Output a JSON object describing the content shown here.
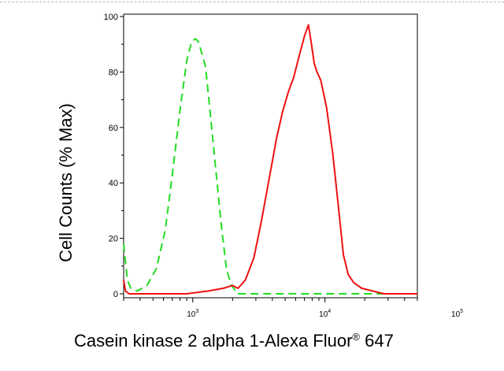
{
  "chart_data": {
    "type": "line",
    "xscale": "log",
    "ylabel": "Cell Counts (% Max)",
    "xlabel": {
      "text": "Casein kinase 2 alpha 1-Alexa Fluor",
      "superscript": "®",
      "suffix": " 647"
    },
    "ylim": [
      0,
      100
    ],
    "xlim": [
      300,
      50000
    ],
    "yticks": [
      "0",
      "20",
      "40",
      "60",
      "80",
      "100"
    ],
    "xticks": [
      {
        "value": 1000,
        "base": "10",
        "exp": "3"
      },
      {
        "value": 10000,
        "base": "10",
        "exp": "4"
      },
      {
        "value": 100000,
        "base": "10",
        "exp": "5"
      }
    ],
    "series": [
      {
        "style": "dashed",
        "color": "#22dd22",
        "x": [
          300,
          320,
          340,
          380,
          450,
          530,
          620,
          700,
          800,
          900,
          980,
          1050,
          1100,
          1150,
          1250,
          1350,
          1500,
          1650,
          1800,
          1950,
          2050,
          2150,
          2400,
          2800,
          50000
        ],
        "y": [
          18,
          5,
          2,
          1,
          3,
          9,
          23,
          43,
          66,
          84,
          91,
          92,
          91,
          88,
          82,
          66,
          44,
          24,
          9,
          3,
          2,
          0,
          0,
          0,
          0
        ]
      },
      {
        "style": "solid",
        "color": "#ee1111",
        "x": [
          300,
          310,
          330,
          400,
          600,
          900,
          1300,
          1700,
          2000,
          2200,
          2500,
          2900,
          3300,
          3800,
          4300,
          4800,
          5300,
          5800,
          6400,
          7000,
          7500,
          7900,
          8300,
          8700,
          9300,
          10300,
          11500,
          12600,
          13800,
          15000,
          16500,
          19000,
          23000,
          28000,
          50000
        ],
        "y": [
          5,
          1,
          0,
          0,
          0,
          0,
          1,
          2,
          3,
          2,
          5,
          13,
          26,
          42,
          56,
          66,
          73,
          78,
          86,
          93,
          97,
          90,
          83,
          80,
          77,
          67,
          50,
          32,
          14,
          7,
          4,
          2,
          1,
          0,
          0
        ]
      }
    ]
  }
}
